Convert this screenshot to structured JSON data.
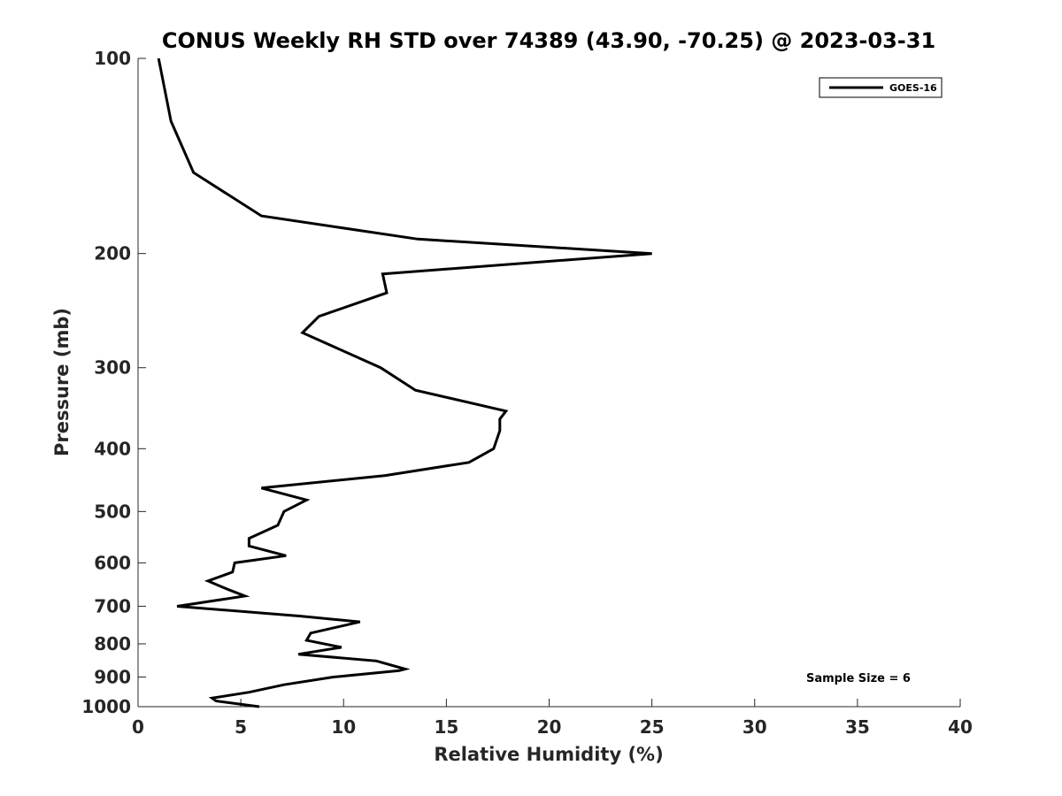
{
  "chart_data": {
    "type": "line",
    "title": "CONUS Weekly RH STD over 74389 (43.90, -70.25) @ 2023-03-31",
    "xlabel": "Relative Humidity (%)",
    "ylabel": "Pressure (mb)",
    "xlim": [
      0,
      40
    ],
    "ylim": [
      100,
      1000
    ],
    "y_scale": "log",
    "y_reversed": true,
    "xticks": [
      0,
      5,
      10,
      15,
      20,
      25,
      30,
      35,
      40
    ],
    "yticks": [
      100,
      200,
      300,
      400,
      500,
      600,
      700,
      800,
      900,
      1000
    ],
    "grid": false,
    "legend_position": "top-right",
    "annotation": "Sample Size = 6",
    "series": [
      {
        "name": "GOES-16",
        "color": "#000000",
        "points": [
          [
            1.0,
            100
          ],
          [
            1.6,
            125
          ],
          [
            2.7,
            150
          ],
          [
            6.0,
            175
          ],
          [
            13.6,
            190
          ],
          [
            25.0,
            200
          ],
          [
            11.9,
            215
          ],
          [
            12.1,
            230
          ],
          [
            8.8,
            250
          ],
          [
            8.0,
            265
          ],
          [
            11.8,
            300
          ],
          [
            13.5,
            325
          ],
          [
            17.9,
            350
          ],
          [
            17.6,
            360
          ],
          [
            17.6,
            375
          ],
          [
            17.3,
            400
          ],
          [
            16.1,
            420
          ],
          [
            12.0,
            440
          ],
          [
            6.0,
            460
          ],
          [
            8.2,
            480
          ],
          [
            7.1,
            500
          ],
          [
            6.8,
            525
          ],
          [
            5.4,
            550
          ],
          [
            5.4,
            565
          ],
          [
            7.2,
            585
          ],
          [
            4.7,
            600
          ],
          [
            4.6,
            620
          ],
          [
            3.4,
            640
          ],
          [
            4.4,
            660
          ],
          [
            5.2,
            675
          ],
          [
            1.9,
            700
          ],
          [
            7.9,
            725
          ],
          [
            10.8,
            740
          ],
          [
            8.4,
            770
          ],
          [
            8.2,
            790
          ],
          [
            9.9,
            810
          ],
          [
            7.8,
            830
          ],
          [
            11.6,
            850
          ],
          [
            13.0,
            875
          ],
          [
            12.7,
            880
          ],
          [
            9.5,
            900
          ],
          [
            7.1,
            925
          ],
          [
            5.4,
            950
          ],
          [
            3.6,
            970
          ],
          [
            3.8,
            980
          ],
          [
            5.9,
            1000
          ]
        ]
      }
    ]
  }
}
